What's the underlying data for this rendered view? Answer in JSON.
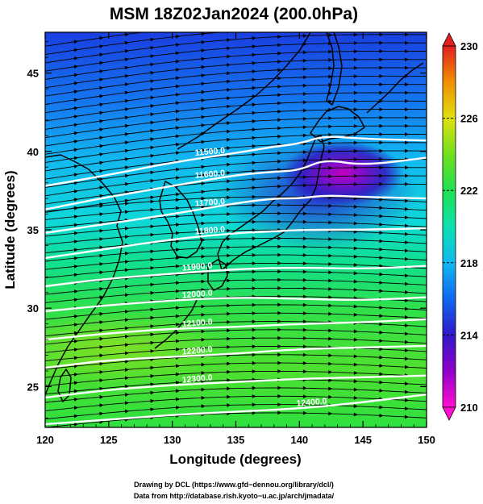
{
  "chart_data": {
    "type": "heatmap",
    "title": "MSM 18Z02Jan2024 (200.0hPa)",
    "xlabel": "Longitude (degrees)",
    "ylabel": "Latitude  (degrees)",
    "xlim": [
      120,
      150
    ],
    "ylim": [
      22.4,
      47.6
    ],
    "xticks": [
      120,
      125,
      130,
      135,
      140,
      145,
      150
    ],
    "yticks": [
      25,
      30,
      35,
      40,
      45
    ],
    "colorbar": {
      "min": 210,
      "max": 230,
      "ticks": [
        210,
        214,
        218,
        222,
        226,
        230
      ],
      "extend": "both",
      "colors": [
        "#ff00d0",
        "#8a00c8",
        "#2818c8",
        "#1466f0",
        "#10b4f0",
        "#0ee0c0",
        "#10e070",
        "#30e030",
        "#80e020",
        "#e0e010",
        "#f0b000",
        "#f06000",
        "#e02020"
      ]
    },
    "contours": [
      {
        "level": 11500,
        "label": "11500.0",
        "points": [
          [
            120,
            37.8
          ],
          [
            125,
            38.5
          ],
          [
            130,
            39.3
          ],
          [
            135,
            39.9
          ],
          [
            138,
            40.3
          ],
          [
            140,
            40.5
          ],
          [
            142,
            41.0
          ],
          [
            145,
            40.8
          ],
          [
            150,
            40.7
          ]
        ]
      },
      {
        "level": 11600,
        "label": "11600.0",
        "points": [
          [
            120,
            36.3
          ],
          [
            125,
            37.1
          ],
          [
            130,
            37.8
          ],
          [
            135,
            38.5
          ],
          [
            138,
            38.7
          ],
          [
            140,
            38.8
          ],
          [
            142,
            39.5
          ],
          [
            145,
            39.1
          ],
          [
            150,
            39.6
          ]
        ]
      },
      {
        "level": 11700,
        "label": "11700.0",
        "points": [
          [
            120,
            34.8
          ],
          [
            125,
            35.4
          ],
          [
            130,
            36.0
          ],
          [
            135,
            36.7
          ],
          [
            138,
            37.0
          ],
          [
            140,
            37.0
          ],
          [
            142,
            37.2
          ],
          [
            145,
            37.1
          ],
          [
            150,
            37.0
          ]
        ]
      },
      {
        "level": 11800,
        "label": "11800.0",
        "points": [
          [
            120,
            33.2
          ],
          [
            125,
            33.8
          ],
          [
            130,
            34.4
          ],
          [
            135,
            34.8
          ],
          [
            138,
            34.9
          ],
          [
            140,
            35.0
          ],
          [
            145,
            35.0
          ],
          [
            150,
            35.1
          ]
        ]
      },
      {
        "level": 11900,
        "label": "11900.0",
        "points": [
          [
            120,
            31.4
          ],
          [
            125,
            31.9
          ],
          [
            130,
            32.2
          ],
          [
            135,
            32.5
          ],
          [
            140,
            32.6
          ],
          [
            145,
            32.5
          ],
          [
            150,
            32.7
          ]
        ]
      },
      {
        "level": 12000,
        "label": "12000.0",
        "points": [
          [
            120,
            29.8
          ],
          [
            125,
            30.2
          ],
          [
            130,
            30.5
          ],
          [
            135,
            30.7
          ],
          [
            140,
            30.6
          ],
          [
            145,
            30.5
          ],
          [
            150,
            30.7
          ]
        ]
      },
      {
        "level": 12100,
        "label": "12100.0",
        "points": [
          [
            120,
            28.0
          ],
          [
            125,
            28.4
          ],
          [
            130,
            28.7
          ],
          [
            135,
            28.8
          ],
          [
            140,
            29.0
          ],
          [
            145,
            29.1
          ],
          [
            150,
            29.3
          ]
        ]
      },
      {
        "level": 12200,
        "label": "12200.0",
        "points": [
          [
            120,
            26.2
          ],
          [
            125,
            26.7
          ],
          [
            130,
            26.9
          ],
          [
            135,
            27.1
          ],
          [
            140,
            27.4
          ],
          [
            145,
            27.5
          ],
          [
            150,
            27.6
          ]
        ]
      },
      {
        "level": 12300,
        "label": "12300.0",
        "points": [
          [
            120,
            24.3
          ],
          [
            125,
            24.8
          ],
          [
            130,
            25.1
          ],
          [
            135,
            25.3
          ],
          [
            140,
            25.5
          ],
          [
            145,
            25.6
          ],
          [
            150,
            25.7
          ]
        ]
      },
      {
        "level": 12400,
        "label": "12400.0",
        "points": [
          [
            120,
            22.6
          ],
          [
            125,
            22.9
          ],
          [
            130,
            23.2
          ],
          [
            135,
            23.4
          ],
          [
            140,
            23.6
          ],
          [
            145,
            24.0
          ],
          [
            150,
            24.5
          ]
        ]
      }
    ]
  },
  "credits": {
    "line1": "Drawing by DCL (https://www.gfd−dennou.org/library/dcl/)",
    "line2": "Data from http://database.rish.kyoto−u.ac.jp/arch/jmadata/"
  }
}
